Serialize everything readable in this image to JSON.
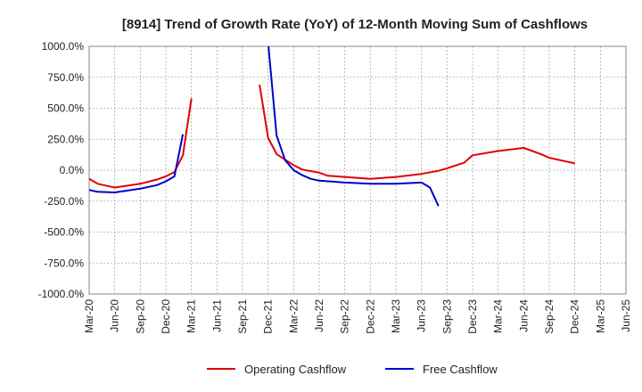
{
  "chart_data": {
    "type": "line",
    "title": "[8914]  Trend of Growth Rate (YoY) of 12-Month Moving Sum of Cashflows",
    "xlabel": "",
    "ylabel": "",
    "ylim": [
      -1000,
      1000
    ],
    "yticks": [
      1000,
      750,
      500,
      250,
      0,
      -250,
      -500,
      -750,
      -1000
    ],
    "ytick_labels": [
      "1000.0%",
      "750.0%",
      "500.0%",
      "250.0%",
      "0.0%",
      "-250.0%",
      "-500.0%",
      "-750.0%",
      "-1000.0%"
    ],
    "x_ticks": [
      "Mar-20",
      "Jun-20",
      "Sep-20",
      "Dec-20",
      "Mar-21",
      "Jun-21",
      "Sep-21",
      "Dec-21",
      "Mar-22",
      "Jun-22",
      "Sep-22",
      "Dec-22",
      "Mar-23",
      "Jun-23",
      "Sep-23",
      "Dec-23",
      "Mar-24",
      "Jun-24",
      "Sep-24",
      "Dec-24",
      "Mar-25",
      "Jun-25"
    ],
    "grid": true,
    "legend": "bottom",
    "series": [
      {
        "name": "Operating Cashflow",
        "color": "#e00000",
        "points": [
          [
            "Mar-20",
            -70
          ],
          [
            "Apr-20",
            -110
          ],
          [
            "Jun-20",
            -140
          ],
          [
            "Sep-20",
            -110
          ],
          [
            "Nov-20",
            -75
          ],
          [
            "Dec-20",
            -50
          ],
          [
            "Jan-21",
            -15
          ],
          [
            "Feb-21",
            120
          ],
          [
            "Mar-21",
            580
          ],
          null,
          [
            "Nov-21",
            690
          ],
          [
            "Dec-21",
            260
          ],
          [
            "Jan-22",
            130
          ],
          [
            "Mar-22",
            40
          ],
          [
            "Apr-22",
            5
          ],
          [
            "Jun-22",
            -20
          ],
          [
            "Jul-22",
            -45
          ],
          [
            "Sep-22",
            -55
          ],
          [
            "Dec-22",
            -70
          ],
          [
            "Mar-23",
            -55
          ],
          [
            "Jun-23",
            -30
          ],
          [
            "Aug-23",
            -5
          ],
          [
            "Sep-23",
            15
          ],
          [
            "Nov-23",
            60
          ],
          [
            "Dec-23",
            120
          ],
          [
            "Mar-24",
            155
          ],
          [
            "Jun-24",
            180
          ],
          [
            "Aug-24",
            130
          ],
          [
            "Sep-24",
            100
          ],
          [
            "Nov-24",
            70
          ],
          [
            "Dec-24",
            55
          ]
        ]
      },
      {
        "name": "Free Cashflow",
        "color": "#0000cc",
        "points": [
          [
            "Mar-20",
            -160
          ],
          [
            "Apr-20",
            -175
          ],
          [
            "Jun-20",
            -180
          ],
          [
            "Sep-20",
            -150
          ],
          [
            "Nov-20",
            -120
          ],
          [
            "Dec-20",
            -90
          ],
          [
            "Jan-21",
            -50
          ],
          [
            "Feb-21",
            290
          ],
          null,
          [
            "Dec-21",
            1030
          ],
          [
            "Jan-22",
            280
          ],
          [
            "Feb-22",
            80
          ],
          [
            "Mar-22",
            0
          ],
          [
            "Apr-22",
            -40
          ],
          [
            "May-22",
            -70
          ],
          [
            "Jun-22",
            -85
          ],
          [
            "Sep-22",
            -100
          ],
          [
            "Dec-22",
            -110
          ],
          [
            "Mar-23",
            -110
          ],
          [
            "Jun-23",
            -100
          ],
          [
            "Jul-23",
            -140
          ],
          [
            "Aug-23",
            -290
          ]
        ]
      }
    ]
  }
}
